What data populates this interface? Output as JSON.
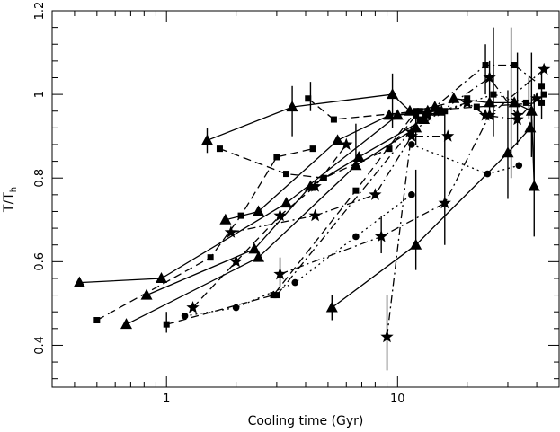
{
  "chart_data": {
    "type": "line",
    "title": "",
    "xlabel": "Cooling time (Gyr)",
    "ylabel": "T/T",
    "ylabel_sub": "h",
    "x_scale": "log",
    "xlim": [
      0.32,
      50
    ],
    "ylim": [
      0.3,
      1.2
    ],
    "x_ticks": [
      1,
      10
    ],
    "x_tick_labels": [
      "1",
      "10"
    ],
    "y_ticks": [
      0.4,
      0.6,
      0.8,
      1.0,
      1.2
    ],
    "y_tick_labels": [
      "0.4",
      "0.6",
      "0.8",
      "1",
      "1.2"
    ],
    "grid": false,
    "legend": "none",
    "series": [
      {
        "marker": "triangle",
        "dash": "solid",
        "x": [
          0.42,
          0.95,
          3.3,
          10.0,
          13.5
        ],
        "y": [
          0.55,
          0.56,
          0.74,
          0.95,
          0.96
        ]
      },
      {
        "marker": "triangle",
        "dash": "solid",
        "x": [
          1.5,
          3.5,
          9.5,
          11.3,
          14.5
        ],
        "y": [
          0.89,
          0.97,
          1.0,
          0.96,
          0.97
        ]
      },
      {
        "marker": "triangle",
        "dash": "solid",
        "x": [
          1.8,
          2.5,
          5.5,
          9.2,
          15.0
        ],
        "y": [
          0.7,
          0.72,
          0.89,
          0.95,
          0.96
        ]
      },
      {
        "marker": "triangle",
        "dash": "solid",
        "x": [
          0.82,
          2.4,
          4.2,
          6.8,
          13.0
        ],
        "y": [
          0.52,
          0.63,
          0.78,
          0.85,
          0.94
        ]
      },
      {
        "marker": "triangle",
        "dash": "solid",
        "x": [
          0.67,
          2.5,
          6.6,
          12.0
        ],
        "y": [
          0.45,
          0.61,
          0.83,
          0.92
        ]
      },
      {
        "marker": "triangle",
        "dash": "solid",
        "x": [
          5.2,
          12.0,
          30.0,
          37.5
        ],
        "y": [
          0.49,
          0.64,
          0.86,
          0.92
        ]
      },
      {
        "marker": "triangle",
        "dash": "solid",
        "x": [
          17.5,
          25.0,
          32.0,
          38.0,
          39.0
        ],
        "y": [
          0.99,
          0.98,
          0.98,
          0.96,
          0.78
        ]
      },
      {
        "marker": "square",
        "dash": "dashed",
        "x": [
          0.5,
          1.55,
          2.1,
          3.0,
          4.3
        ],
        "y": [
          0.46,
          0.61,
          0.71,
          0.85,
          0.87
        ]
      },
      {
        "marker": "square",
        "dash": "dashed",
        "x": [
          1.7,
          3.3,
          4.8,
          9.2,
          12.0
        ],
        "y": [
          0.87,
          0.81,
          0.8,
          0.87,
          0.95
        ]
      },
      {
        "marker": "square",
        "dash": "dashed",
        "x": [
          1.0,
          2.9,
          6.6,
          12.0,
          20.0
        ],
        "y": [
          0.45,
          0.52,
          0.77,
          0.96,
          0.99
        ]
      },
      {
        "marker": "square",
        "dash": "dashed",
        "x": [
          4.1,
          5.3,
          12.5,
          22.0,
          42.0
        ],
        "y": [
          0.99,
          0.94,
          0.96,
          0.97,
          0.98
        ]
      },
      {
        "marker": "square",
        "dash": "dashdot",
        "x": [
          3.0,
          12.5,
          24.0,
          32.0,
          42.0
        ],
        "y": [
          0.52,
          0.94,
          1.07,
          1.07,
          1.02
        ]
      },
      {
        "marker": "square",
        "dash": "dotted",
        "x": [
          16.0,
          26.0,
          36.0,
          43.0
        ],
        "y": [
          0.96,
          1.0,
          0.98,
          1.0
        ]
      },
      {
        "marker": "star",
        "dash": "dashed",
        "x": [
          1.3,
          2.0,
          3.1,
          4.4,
          6.0
        ],
        "y": [
          0.49,
          0.6,
          0.71,
          0.78,
          0.88
        ]
      },
      {
        "marker": "star",
        "dash": "dashdot",
        "x": [
          1.9,
          4.4,
          8.0,
          11.5,
          16.5
        ],
        "y": [
          0.67,
          0.71,
          0.76,
          0.9,
          0.9
        ]
      },
      {
        "marker": "star",
        "dash": "dashdot",
        "x": [
          3.1,
          8.5,
          16.0,
          25.0,
          43.0
        ],
        "y": [
          0.57,
          0.66,
          0.74,
          0.95,
          1.06
        ]
      },
      {
        "marker": "star",
        "dash": "dashdot",
        "x": [
          9.0,
          11.5,
          15.5,
          25.0,
          33.0
        ],
        "y": [
          0.42,
          0.91,
          0.96,
          1.04,
          0.95
        ]
      },
      {
        "marker": "star",
        "dash": "dashdot",
        "x": [
          13.5,
          20.0,
          24.0,
          33.0,
          40.0
        ],
        "y": [
          0.95,
          0.98,
          0.95,
          0.94,
          0.99
        ]
      },
      {
        "marker": "circle",
        "dash": "dotted",
        "x": [
          1.2,
          2.0,
          3.6,
          6.6,
          11.5
        ],
        "y": [
          0.47,
          0.49,
          0.55,
          0.66,
          0.76
        ]
      },
      {
        "marker": "circle",
        "dash": "dotted",
        "x": [
          11.5,
          24.5,
          33.5
        ],
        "y": [
          0.88,
          0.81,
          0.83
        ]
      }
    ],
    "error_bars": [
      {
        "x": 1.0,
        "ylo": 0.43,
        "yhi": 0.48
      },
      {
        "x": 1.5,
        "ylo": 0.86,
        "yhi": 0.92
      },
      {
        "x": 3.1,
        "ylo": 0.54,
        "yhi": 0.61
      },
      {
        "x": 3.5,
        "ylo": 0.9,
        "yhi": 1.02
      },
      {
        "x": 4.2,
        "ylo": 0.96,
        "yhi": 1.03
      },
      {
        "x": 5.2,
        "ylo": 0.46,
        "yhi": 0.52
      },
      {
        "x": 6.6,
        "ylo": 0.84,
        "yhi": 0.93
      },
      {
        "x": 8.5,
        "ylo": 0.62,
        "yhi": 0.71
      },
      {
        "x": 9.0,
        "ylo": 0.34,
        "yhi": 0.52
      },
      {
        "x": 9.5,
        "ylo": 0.92,
        "yhi": 1.05
      },
      {
        "x": 12.0,
        "ylo": 0.58,
        "yhi": 0.82
      },
      {
        "x": 12.0,
        "ylo": 0.88,
        "yhi": 0.96
      },
      {
        "x": 16.0,
        "ylo": 0.64,
        "yhi": 0.96
      },
      {
        "x": 24.0,
        "ylo": 1.0,
        "yhi": 1.12
      },
      {
        "x": 25.0,
        "ylo": 0.96,
        "yhi": 1.08
      },
      {
        "x": 26.0,
        "ylo": 0.9,
        "yhi": 1.16
      },
      {
        "x": 30.0,
        "ylo": 0.75,
        "yhi": 1.01
      },
      {
        "x": 31.0,
        "ylo": 0.8,
        "yhi": 1.16
      },
      {
        "x": 33.0,
        "ylo": 0.88,
        "yhi": 1.1
      },
      {
        "x": 37.0,
        "ylo": 0.94,
        "yhi": 1.04
      },
      {
        "x": 38.0,
        "ylo": 0.85,
        "yhi": 1.1
      },
      {
        "x": 39.0,
        "ylo": 0.66,
        "yhi": 1.0
      },
      {
        "x": 42.0,
        "ylo": 0.94,
        "yhi": 1.06
      }
    ]
  }
}
